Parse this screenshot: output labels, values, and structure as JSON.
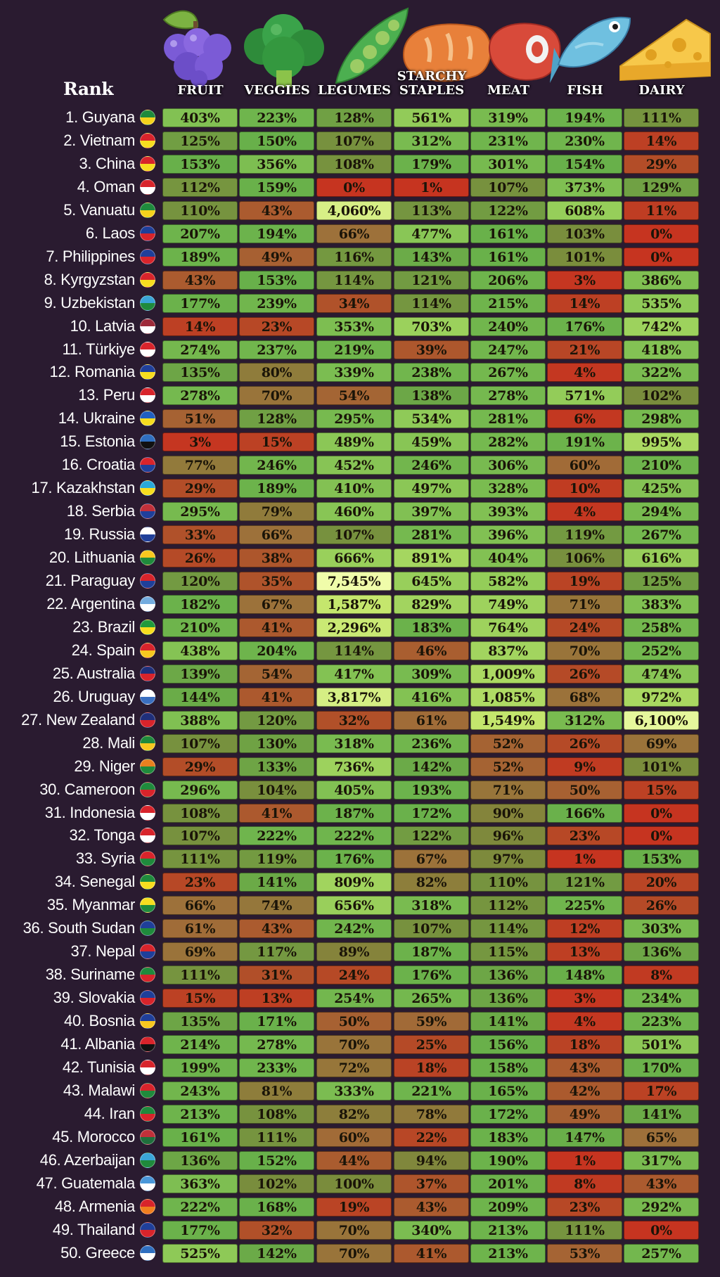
{
  "header": {
    "rank_label": "Rank",
    "columns": [
      {
        "line1": "FRUIT",
        "line2": "",
        "icon": "grapes-icon"
      },
      {
        "line1": "VEGGIES",
        "line2": "",
        "icon": "broccoli-icon"
      },
      {
        "line1": "LEGUMES",
        "line2": "",
        "icon": "peapod-icon"
      },
      {
        "line1": "STARCHY",
        "line2": "STAPLES",
        "icon": "bread-icon"
      },
      {
        "line1": "MEAT",
        "line2": "",
        "icon": "steak-icon"
      },
      {
        "line1": "FISH",
        "line2": "",
        "icon": "fish-icon"
      },
      {
        "line1": "DAIRY",
        "line2": "",
        "icon": "cheese-icon"
      }
    ]
  },
  "chart_data": {
    "type": "table",
    "columns": [
      "FRUIT",
      "VEGGIES",
      "LEGUMES",
      "STARCHY STAPLES",
      "MEAT",
      "FISH",
      "DAIRY"
    ],
    "rows": [
      {
        "rank": "1. Guyana",
        "values": [
          "403%",
          "223%",
          "128%",
          "561%",
          "319%",
          "194%",
          "111%"
        ]
      },
      {
        "rank": "2. Vietnam",
        "values": [
          "125%",
          "150%",
          "107%",
          "312%",
          "231%",
          "230%",
          "14%"
        ]
      },
      {
        "rank": "3. China",
        "values": [
          "153%",
          "356%",
          "108%",
          "179%",
          "301%",
          "154%",
          "29%"
        ]
      },
      {
        "rank": "4. Oman",
        "values": [
          "112%",
          "159%",
          "0%",
          "1%",
          "107%",
          "373%",
          "129%"
        ]
      },
      {
        "rank": "5. Vanuatu",
        "values": [
          "110%",
          "43%",
          "4,060%",
          "113%",
          "122%",
          "608%",
          "11%"
        ]
      },
      {
        "rank": "6. Laos",
        "values": [
          "207%",
          "194%",
          "66%",
          "477%",
          "161%",
          "103%",
          "0%"
        ]
      },
      {
        "rank": "7. Philippines",
        "values": [
          "189%",
          "49%",
          "116%",
          "143%",
          "161%",
          "101%",
          "0%"
        ]
      },
      {
        "rank": "8. Kyrgyzstan",
        "values": [
          "43%",
          "153%",
          "114%",
          "121%",
          "206%",
          "3%",
          "386%"
        ]
      },
      {
        "rank": "9. Uzbekistan",
        "values": [
          "177%",
          "239%",
          "34%",
          "114%",
          "215%",
          "14%",
          "535%"
        ]
      },
      {
        "rank": "10. Latvia",
        "values": [
          "14%",
          "23%",
          "353%",
          "703%",
          "240%",
          "176%",
          "742%"
        ]
      },
      {
        "rank": "11. Türkiye",
        "values": [
          "274%",
          "237%",
          "219%",
          "39%",
          "247%",
          "21%",
          "418%"
        ]
      },
      {
        "rank": "12. Romania",
        "values": [
          "135%",
          "80%",
          "339%",
          "238%",
          "267%",
          "4%",
          "322%"
        ]
      },
      {
        "rank": "13. Peru",
        "values": [
          "278%",
          "70%",
          "54%",
          "138%",
          "278%",
          "571%",
          "102%"
        ]
      },
      {
        "rank": "14. Ukraine",
        "values": [
          "51%",
          "128%",
          "295%",
          "534%",
          "281%",
          "6%",
          "298%"
        ]
      },
      {
        "rank": "15. Estonia",
        "values": [
          "3%",
          "15%",
          "489%",
          "459%",
          "282%",
          "191%",
          "995%"
        ]
      },
      {
        "rank": "16. Croatia",
        "values": [
          "77%",
          "246%",
          "452%",
          "246%",
          "306%",
          "60%",
          "210%"
        ]
      },
      {
        "rank": "17. Kazakhstan",
        "values": [
          "29%",
          "189%",
          "410%",
          "497%",
          "328%",
          "10%",
          "425%"
        ]
      },
      {
        "rank": "18. Serbia",
        "values": [
          "295%",
          "79%",
          "460%",
          "397%",
          "393%",
          "4%",
          "294%"
        ]
      },
      {
        "rank": "19. Russia",
        "values": [
          "33%",
          "66%",
          "107%",
          "281%",
          "396%",
          "119%",
          "267%"
        ]
      },
      {
        "rank": "20. Lithuania",
        "values": [
          "26%",
          "38%",
          "666%",
          "891%",
          "404%",
          "106%",
          "616%"
        ]
      },
      {
        "rank": "21. Paraguay",
        "values": [
          "120%",
          "35%",
          "7,545%",
          "645%",
          "582%",
          "19%",
          "125%"
        ]
      },
      {
        "rank": "22. Argentina",
        "values": [
          "182%",
          "67%",
          "1,587%",
          "829%",
          "749%",
          "71%",
          "383%"
        ]
      },
      {
        "rank": "23. Brazil",
        "values": [
          "210%",
          "41%",
          "2,296%",
          "183%",
          "764%",
          "24%",
          "258%"
        ]
      },
      {
        "rank": "24. Spain",
        "values": [
          "438%",
          "204%",
          "114%",
          "46%",
          "837%",
          "70%",
          "252%"
        ]
      },
      {
        "rank": "25. Australia",
        "values": [
          "139%",
          "54%",
          "417%",
          "309%",
          "1,009%",
          "26%",
          "474%"
        ]
      },
      {
        "rank": "26. Uruguay",
        "values": [
          "144%",
          "41%",
          "3,817%",
          "416%",
          "1,085%",
          "68%",
          "972%"
        ]
      },
      {
        "rank": "27. New Zealand",
        "values": [
          "388%",
          "120%",
          "32%",
          "61%",
          "1,549%",
          "312%",
          "6,100%"
        ]
      },
      {
        "rank": "28. Mali",
        "values": [
          "107%",
          "130%",
          "318%",
          "236%",
          "52%",
          "26%",
          "69%"
        ]
      },
      {
        "rank": "29. Niger",
        "values": [
          "29%",
          "133%",
          "736%",
          "142%",
          "52%",
          "9%",
          "101%"
        ]
      },
      {
        "rank": "30. Cameroon",
        "values": [
          "296%",
          "104%",
          "405%",
          "193%",
          "71%",
          "50%",
          "15%"
        ]
      },
      {
        "rank": "31. Indonesia",
        "values": [
          "108%",
          "41%",
          "187%",
          "172%",
          "90%",
          "166%",
          "0%"
        ]
      },
      {
        "rank": "32. Tonga",
        "values": [
          "107%",
          "222%",
          "222%",
          "122%",
          "96%",
          "23%",
          "0%"
        ]
      },
      {
        "rank": "33. Syria",
        "values": [
          "111%",
          "119%",
          "176%",
          "67%",
          "97%",
          "1%",
          "153%"
        ]
      },
      {
        "rank": "34. Senegal",
        "values": [
          "23%",
          "141%",
          "809%",
          "82%",
          "110%",
          "121%",
          "20%"
        ]
      },
      {
        "rank": "35. Myanmar",
        "values": [
          "66%",
          "74%",
          "656%",
          "318%",
          "112%",
          "225%",
          "26%"
        ]
      },
      {
        "rank": "36. South Sudan",
        "values": [
          "61%",
          "43%",
          "242%",
          "107%",
          "114%",
          "12%",
          "303%"
        ]
      },
      {
        "rank": "37. Nepal",
        "values": [
          "69%",
          "117%",
          "89%",
          "187%",
          "115%",
          "13%",
          "136%"
        ]
      },
      {
        "rank": "38. Suriname",
        "values": [
          "111%",
          "31%",
          "24%",
          "176%",
          "136%",
          "148%",
          "8%"
        ]
      },
      {
        "rank": "39. Slovakia",
        "values": [
          "15%",
          "13%",
          "254%",
          "265%",
          "136%",
          "3%",
          "234%"
        ]
      },
      {
        "rank": "40. Bosnia",
        "values": [
          "135%",
          "171%",
          "50%",
          "59%",
          "141%",
          "4%",
          "223%"
        ]
      },
      {
        "rank": "41. Albania",
        "values": [
          "214%",
          "278%",
          "70%",
          "25%",
          "156%",
          "18%",
          "501%"
        ]
      },
      {
        "rank": "42. Tunisia",
        "values": [
          "199%",
          "233%",
          "72%",
          "18%",
          "158%",
          "43%",
          "170%"
        ]
      },
      {
        "rank": "43. Malawi",
        "values": [
          "243%",
          "81%",
          "333%",
          "221%",
          "165%",
          "42%",
          "17%"
        ]
      },
      {
        "rank": "44. Iran",
        "values": [
          "213%",
          "108%",
          "82%",
          "78%",
          "172%",
          "49%",
          "141%"
        ]
      },
      {
        "rank": "45. Morocco",
        "values": [
          "161%",
          "111%",
          "60%",
          "22%",
          "183%",
          "147%",
          "65%"
        ]
      },
      {
        "rank": "46. Azerbaijan",
        "values": [
          "136%",
          "152%",
          "44%",
          "94%",
          "190%",
          "1%",
          "317%"
        ]
      },
      {
        "rank": "47. Guatemala",
        "values": [
          "363%",
          "102%",
          "100%",
          "37%",
          "201%",
          "8%",
          "43%"
        ]
      },
      {
        "rank": "48. Armenia",
        "values": [
          "222%",
          "168%",
          "19%",
          "43%",
          "209%",
          "23%",
          "292%"
        ]
      },
      {
        "rank": "49. Thailand",
        "values": [
          "177%",
          "32%",
          "70%",
          "340%",
          "213%",
          "111%",
          "0%"
        ]
      },
      {
        "rank": "50. Greece",
        "values": [
          "525%",
          "142%",
          "70%",
          "41%",
          "213%",
          "53%",
          "257%"
        ]
      }
    ]
  },
  "flags": [
    {
      "primary": "#1f8a3c",
      "secondary": "#f5d21c"
    },
    {
      "primary": "#d8242b",
      "secondary": "#f7dd1f"
    },
    {
      "primary": "#d8242b",
      "secondary": "#f7dd1f"
    },
    {
      "primary": "#d8242b",
      "secondary": "#ffffff"
    },
    {
      "primary": "#1f8a3c",
      "secondary": "#f5d21c"
    },
    {
      "primary": "#1f3f9a",
      "secondary": "#d8242b"
    },
    {
      "primary": "#1f3f9a",
      "secondary": "#d8242b"
    },
    {
      "primary": "#d8242b",
      "secondary": "#f7dd1f"
    },
    {
      "primary": "#3aa5d8",
      "secondary": "#1f8a3c"
    },
    {
      "primary": "#9e2a3a",
      "secondary": "#ffffff"
    },
    {
      "primary": "#d8242b",
      "secondary": "#ffffff"
    },
    {
      "primary": "#1f3f9a",
      "secondary": "#f7dd1f"
    },
    {
      "primary": "#d8242b",
      "secondary": "#ffffff"
    },
    {
      "primary": "#1f5fc0",
      "secondary": "#f7dd1f"
    },
    {
      "primary": "#2f6fc0",
      "secondary": "#111111"
    },
    {
      "primary": "#d8242b",
      "secondary": "#1f3f9a"
    },
    {
      "primary": "#29a9d9",
      "secondary": "#f7dd1f"
    },
    {
      "primary": "#c0303a",
      "secondary": "#1f3f9a"
    },
    {
      "primary": "#ffffff",
      "secondary": "#1f3f9a"
    },
    {
      "primary": "#f7c81f",
      "secondary": "#1f8a3c"
    },
    {
      "primary": "#d8242b",
      "secondary": "#1f3f9a"
    },
    {
      "primary": "#74acdf",
      "secondary": "#ffffff"
    },
    {
      "primary": "#1f9a3c",
      "secondary": "#f7dd1f"
    },
    {
      "primary": "#d8242b",
      "secondary": "#f7c81f"
    },
    {
      "primary": "#1f2f7a",
      "secondary": "#d8242b"
    },
    {
      "primary": "#ffffff",
      "secondary": "#3a6fc0"
    },
    {
      "primary": "#1f2f7a",
      "secondary": "#d8242b"
    },
    {
      "primary": "#1f8a3c",
      "secondary": "#f7c81f"
    },
    {
      "primary": "#e8801f",
      "secondary": "#1f8a3c"
    },
    {
      "primary": "#1f8a3c",
      "secondary": "#d8242b"
    },
    {
      "primary": "#d8242b",
      "secondary": "#ffffff"
    },
    {
      "primary": "#d8242b",
      "secondary": "#ffffff"
    },
    {
      "primary": "#d8242b",
      "secondary": "#1f8a3c"
    },
    {
      "primary": "#1f8a3c",
      "secondary": "#f7dd1f"
    },
    {
      "primary": "#f7dd1f",
      "secondary": "#1f8a3c"
    },
    {
      "primary": "#1f3f9a",
      "secondary": "#1f8a3c"
    },
    {
      "primary": "#d8242b",
      "secondary": "#1f3f9a"
    },
    {
      "primary": "#1f8a3c",
      "secondary": "#d8242b"
    },
    {
      "primary": "#1f3f9a",
      "secondary": "#d8242b"
    },
    {
      "primary": "#1f3f9a",
      "secondary": "#f7c81f"
    },
    {
      "primary": "#d8242b",
      "secondary": "#111111"
    },
    {
      "primary": "#d8242b",
      "secondary": "#ffffff"
    },
    {
      "primary": "#d8242b",
      "secondary": "#1f8a3c"
    },
    {
      "primary": "#1f8a3c",
      "secondary": "#d8242b"
    },
    {
      "primary": "#c0303a",
      "secondary": "#1f6f3c"
    },
    {
      "primary": "#3aa5d8",
      "secondary": "#1f8a3c"
    },
    {
      "primary": "#4a97d9",
      "secondary": "#ffffff"
    },
    {
      "primary": "#d8242b",
      "secondary": "#f07f1f"
    },
    {
      "primary": "#1f3f9a",
      "secondary": "#d8242b"
    },
    {
      "primary": "#2f6fc0",
      "secondary": "#ffffff"
    }
  ]
}
